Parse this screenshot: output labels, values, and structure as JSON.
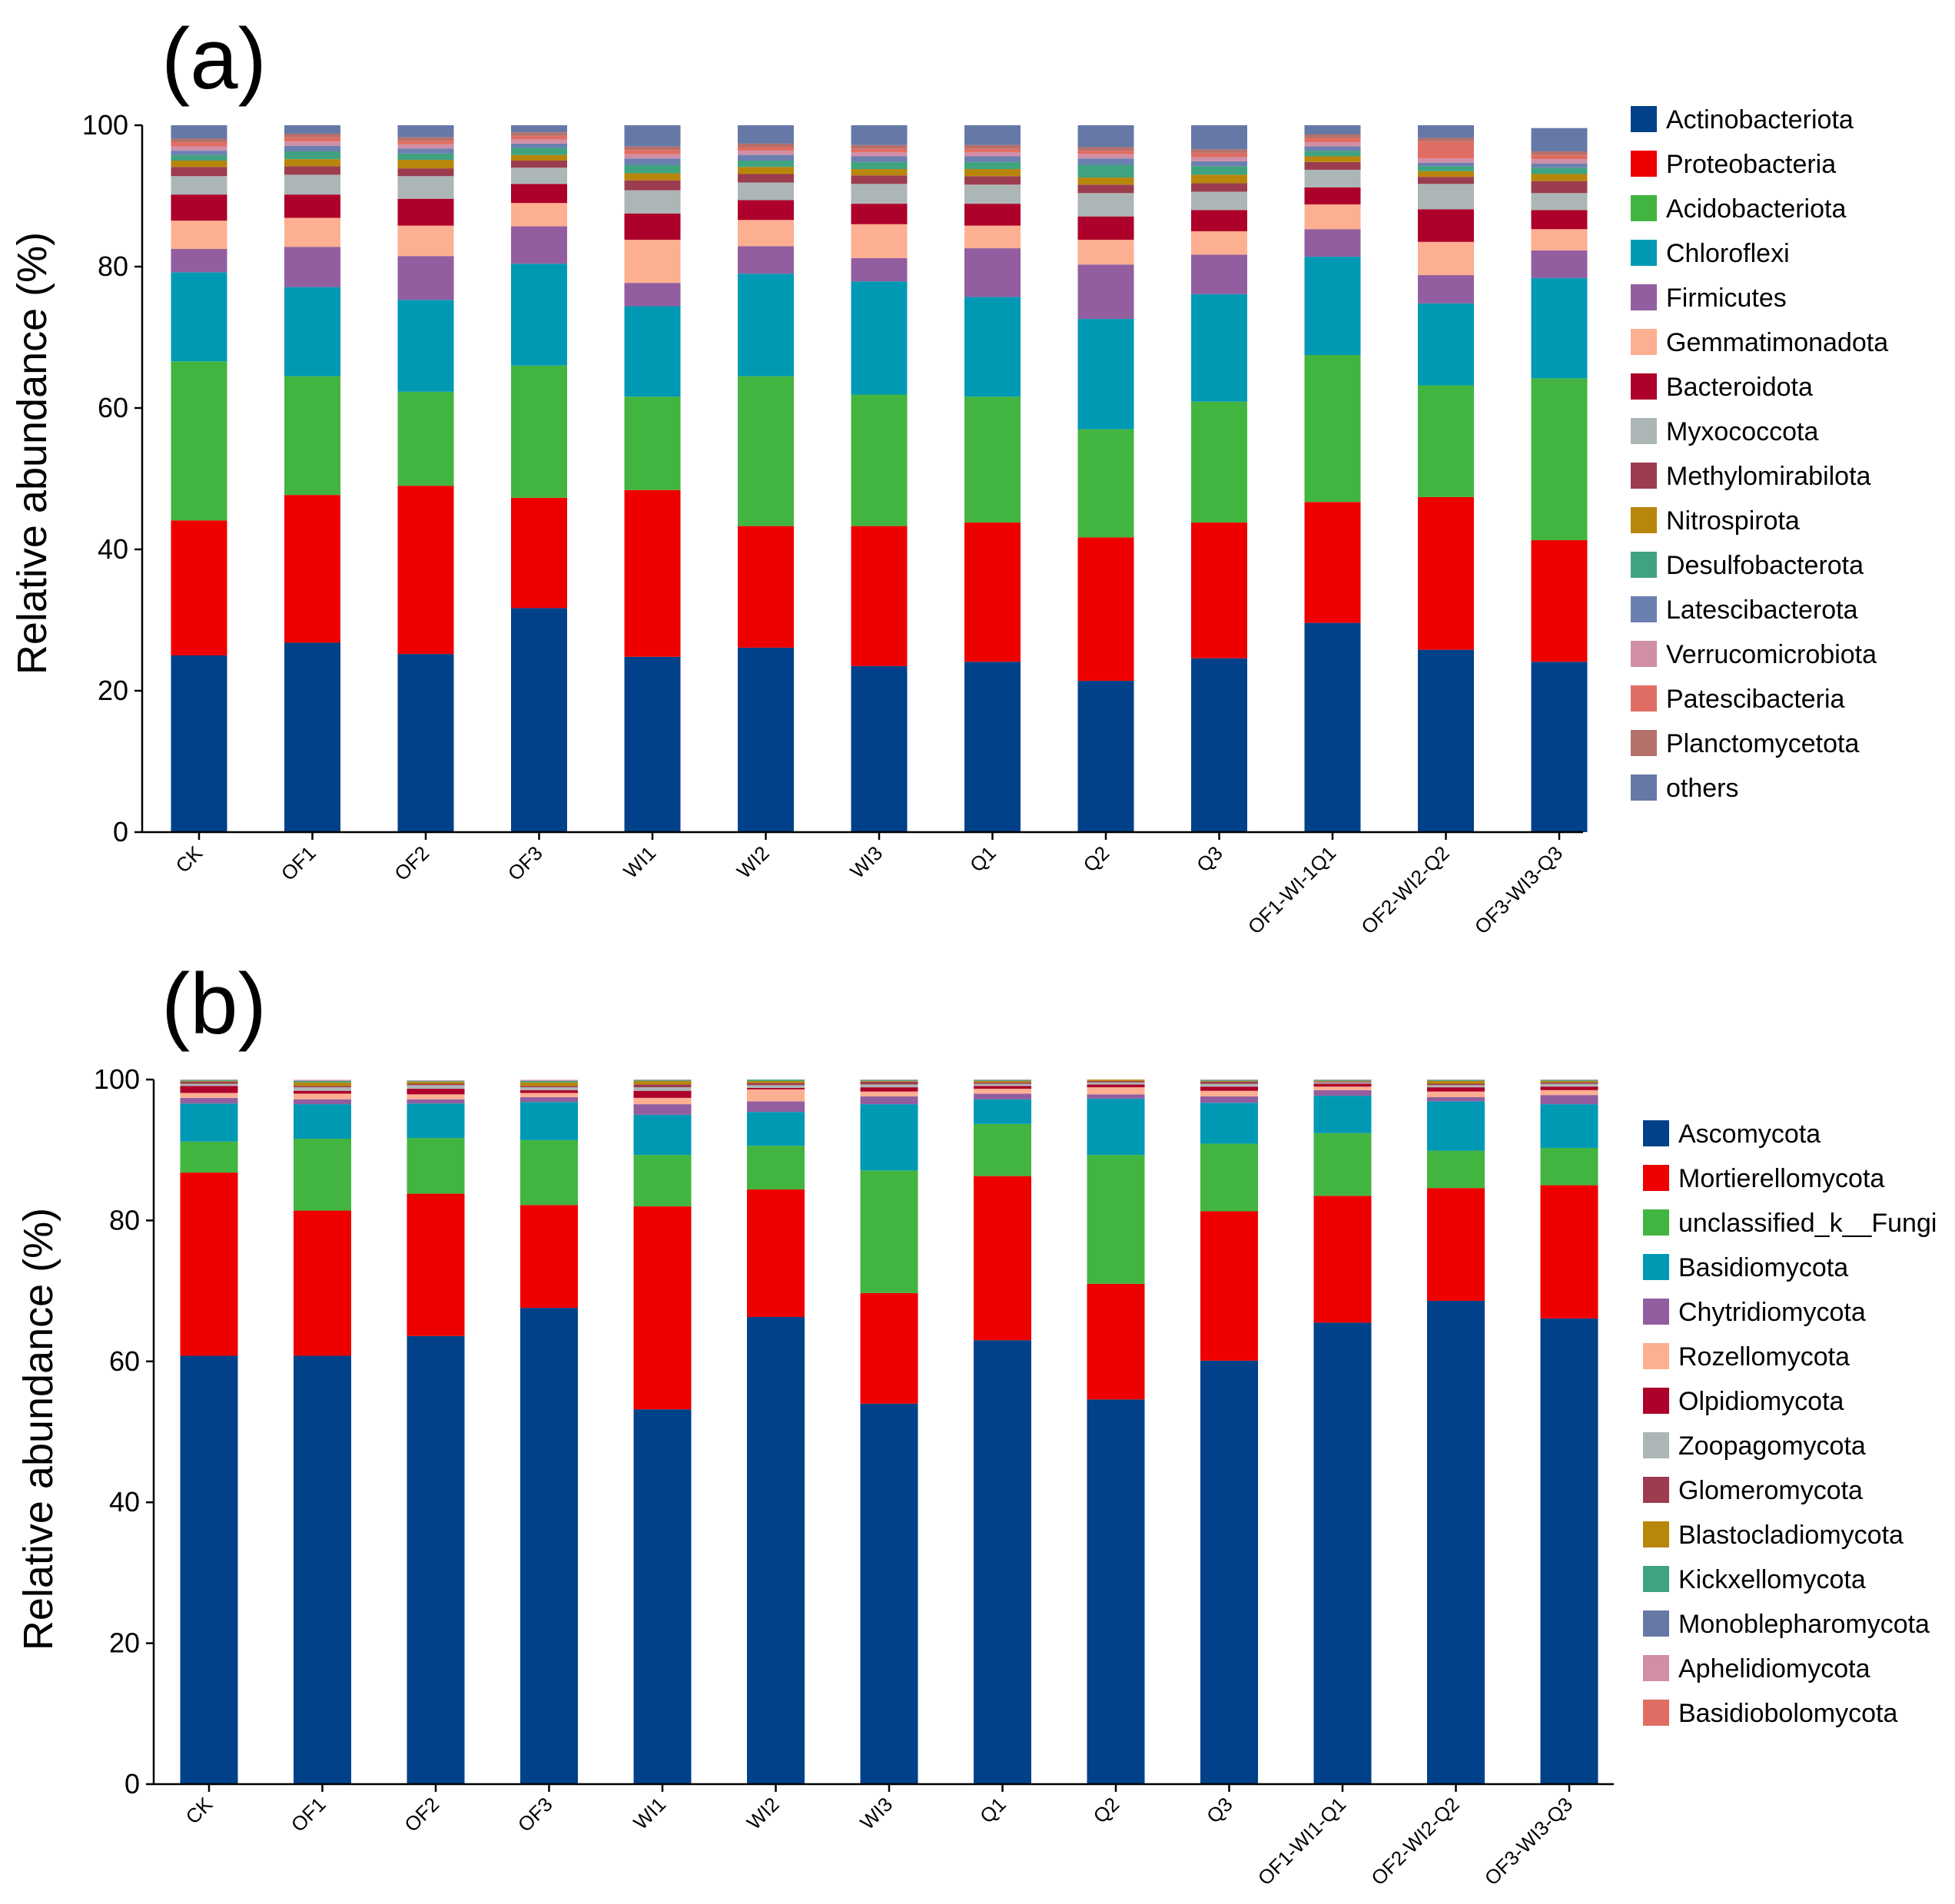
{
  "chart_data": [
    {
      "type": "bar",
      "stacked": true,
      "panel_label": "(a)",
      "title": "",
      "xlabel": "",
      "ylabel": "Relative abundance (%)",
      "ylim": [
        0,
        100
      ],
      "yticks": [
        0,
        20,
        40,
        60,
        80,
        100
      ],
      "grid": false,
      "legend_position": "right",
      "categories": [
        "CK",
        "OF1",
        "OF2",
        "OF3",
        "WI1",
        "WI2",
        "WI3",
        "Q1",
        "Q2",
        "Q3",
        "OF1-WI-1Q1",
        "OF2-WI2-Q2",
        "OF3-WI3-Q3"
      ],
      "series": [
        {
          "name": "Actinobacteriota",
          "color": "#004189",
          "values": [
            25.0,
            26.8,
            25.2,
            31.7,
            24.8,
            26.1,
            23.5,
            24.1,
            21.4,
            24.6,
            29.6,
            25.8,
            24.1
          ]
        },
        {
          "name": "Proteobacteria",
          "color": "#ee0000",
          "values": [
            19.1,
            20.9,
            23.8,
            15.6,
            23.6,
            17.2,
            19.8,
            19.7,
            20.3,
            19.2,
            17.1,
            21.6,
            17.2
          ]
        },
        {
          "name": "Acidobacteriota",
          "color": "#42b540",
          "values": [
            22.5,
            16.8,
            13.3,
            18.7,
            13.2,
            21.2,
            18.6,
            17.8,
            15.3,
            17.1,
            20.8,
            15.8,
            22.9
          ]
        },
        {
          "name": "Chloroflexi",
          "color": "#0099b4",
          "values": [
            12.6,
            12.6,
            13.0,
            14.4,
            12.8,
            14.5,
            16.0,
            14.1,
            15.6,
            15.2,
            13.9,
            11.6,
            14.2
          ]
        },
        {
          "name": "Firmicutes",
          "color": "#925e9f",
          "values": [
            3.3,
            5.7,
            6.2,
            5.3,
            3.3,
            3.9,
            3.3,
            6.9,
            7.7,
            5.6,
            3.9,
            4.0,
            3.9
          ]
        },
        {
          "name": "Gemmatimonadota",
          "color": "#fdaf91",
          "values": [
            4.0,
            4.1,
            4.3,
            3.3,
            6.1,
            3.7,
            4.8,
            3.2,
            3.5,
            3.3,
            3.5,
            4.7,
            3.0
          ]
        },
        {
          "name": "Bacteroidota",
          "color": "#ad002a",
          "values": [
            3.7,
            3.3,
            3.8,
            2.7,
            3.7,
            2.8,
            2.9,
            3.1,
            3.3,
            3.0,
            2.4,
            4.6,
            2.7
          ]
        },
        {
          "name": "Myxococcota",
          "color": "#adb6b6",
          "values": [
            2.6,
            2.8,
            3.2,
            2.3,
            3.3,
            2.5,
            2.8,
            2.7,
            3.3,
            2.6,
            2.5,
            3.6,
            2.4
          ]
        },
        {
          "name": "Methylomirabilota",
          "color": "#9b3d4f",
          "values": [
            1.3,
            1.2,
            1.1,
            1.0,
            1.4,
            1.2,
            1.2,
            1.2,
            1.2,
            1.2,
            1.1,
            1.0,
            1.7
          ]
        },
        {
          "name": "Nitrospirota",
          "color": "#b8860b",
          "values": [
            0.9,
            1.0,
            1.2,
            0.8,
            1.0,
            1.0,
            0.9,
            1.0,
            1.0,
            1.2,
            0.8,
            0.8,
            1.0
          ]
        },
        {
          "name": "Desulfobacterota",
          "color": "#3fa37f",
          "values": [
            0.8,
            1.1,
            0.9,
            1.0,
            1.2,
            0.9,
            1.0,
            1.0,
            1.8,
            1.2,
            0.8,
            0.7,
            0.9
          ]
        },
        {
          "name": "Latescibacterota",
          "color": "#6b7fb0",
          "values": [
            0.6,
            0.8,
            0.7,
            0.6,
            0.9,
            0.8,
            0.8,
            0.8,
            0.9,
            0.7,
            0.6,
            0.5,
            0.6
          ]
        },
        {
          "name": "Verrucomicrobiota",
          "color": "#d08ea7",
          "values": [
            0.6,
            0.6,
            0.6,
            0.6,
            0.6,
            0.6,
            0.6,
            0.6,
            0.6,
            0.6,
            0.6,
            0.6,
            0.6
          ]
        },
        {
          "name": "Patescibacteria",
          "color": "#e06d63",
          "values": [
            0.6,
            0.6,
            0.5,
            0.5,
            0.6,
            0.5,
            0.5,
            0.5,
            0.5,
            0.6,
            0.6,
            2.4,
            0.6
          ]
        },
        {
          "name": "Planctomycetota",
          "color": "#b6706a",
          "values": [
            0.5,
            0.5,
            0.5,
            0.5,
            0.5,
            0.5,
            0.5,
            0.5,
            0.5,
            0.5,
            0.5,
            0.5,
            0.5
          ]
        },
        {
          "name": "others",
          "color": "#6679a6",
          "values": [
            1.9,
            1.2,
            1.7,
            1.0,
            3.0,
            2.6,
            2.8,
            2.8,
            3.1,
            3.4,
            1.3,
            1.8,
            3.3
          ]
        }
      ]
    },
    {
      "type": "bar",
      "stacked": true,
      "panel_label": "(b)",
      "title": "",
      "xlabel": "",
      "ylabel": "Relative abundance (%)",
      "ylim": [
        0,
        100
      ],
      "yticks": [
        0,
        20,
        40,
        60,
        80,
        100
      ],
      "grid": false,
      "legend_position": "right",
      "categories": [
        "CK",
        "OF1",
        "OF2",
        "OF3",
        "WI1",
        "WI2",
        "WI3",
        "Q1",
        "Q2",
        "Q3",
        "OF1-WI1-Q1",
        "OF2-WI2-Q2",
        "OF3-WI3-Q3"
      ],
      "series": [
        {
          "name": "Ascomycota",
          "color": "#004189",
          "values": [
            60.8,
            60.8,
            63.6,
            67.6,
            53.2,
            66.3,
            54.0,
            63.0,
            54.6,
            60.1,
            65.5,
            68.6,
            66.1
          ]
        },
        {
          "name": "Mortierellomycota",
          "color": "#ee0000",
          "values": [
            26.0,
            20.6,
            20.2,
            14.6,
            28.8,
            18.1,
            15.7,
            23.3,
            16.4,
            21.2,
            18.0,
            16.0,
            18.9
          ]
        },
        {
          "name": "unclassified_k__Fungi",
          "color": "#42b540",
          "values": [
            4.4,
            10.2,
            7.9,
            9.2,
            7.3,
            6.2,
            17.4,
            7.4,
            18.3,
            9.6,
            8.9,
            5.3,
            5.3
          ]
        },
        {
          "name": "Basidiomycota",
          "color": "#0099b4",
          "values": [
            5.4,
            4.9,
            4.9,
            5.4,
            5.7,
            4.8,
            9.4,
            3.5,
            8.0,
            5.8,
            5.3,
            7.0,
            6.2
          ]
        },
        {
          "name": "Chytridiomycota",
          "color": "#925e9f",
          "values": [
            0.8,
            0.7,
            0.6,
            0.7,
            1.5,
            1.5,
            1.1,
            0.8,
            0.6,
            0.9,
            0.8,
            0.6,
            1.3
          ]
        },
        {
          "name": "Rozellomycota",
          "color": "#fdaf91",
          "values": [
            0.7,
            0.8,
            0.7,
            0.6,
            0.9,
            1.7,
            0.7,
            0.7,
            1.0,
            0.8,
            0.5,
            0.8,
            0.7
          ]
        },
        {
          "name": "Olpidiomycota",
          "color": "#ad002a",
          "values": [
            1.0,
            0.4,
            0.8,
            0.4,
            1.0,
            0.2,
            0.6,
            0.4,
            0.4,
            0.6,
            0.4,
            0.6,
            0.5
          ]
        },
        {
          "name": "Zoopagomycota",
          "color": "#adb6b6",
          "values": [
            0.3,
            0.5,
            0.5,
            0.4,
            0.5,
            0.4,
            0.4,
            0.3,
            0.3,
            0.4,
            0.2,
            0.3,
            0.4
          ]
        },
        {
          "name": "Glomeromycota",
          "color": "#9b3d4f",
          "values": [
            0.3,
            0.2,
            0.2,
            0.2,
            0.4,
            0.3,
            0.4,
            0.2,
            0.2,
            0.3,
            0.1,
            0.2,
            0.2
          ]
        },
        {
          "name": "Blastocladiomycota",
          "color": "#b8860b",
          "values": [
            0.1,
            0.5,
            0.3,
            0.5,
            0.5,
            0.3,
            0.1,
            0.2,
            0.2,
            0.1,
            0.1,
            0.4,
            0.2
          ]
        },
        {
          "name": "Kickxellomycota",
          "color": "#3fa37f",
          "values": [
            0.1,
            0.2,
            0.1,
            0.2,
            0.1,
            0.2,
            0.1,
            0.1,
            0.1,
            0.1,
            0.1,
            0.1,
            0.1
          ]
        },
        {
          "name": "Monoblepharomycota",
          "color": "#6679a6",
          "values": [
            0.05,
            0.05,
            0.05,
            0.05,
            0.05,
            0.05,
            0.05,
            0.05,
            0.05,
            0.05,
            0.05,
            0.05,
            0.05
          ]
        },
        {
          "name": "Aphelidiomycota",
          "color": "#d08ea7",
          "values": [
            0.05,
            0.05,
            0.05,
            0.05,
            0.05,
            0.05,
            0.05,
            0.05,
            0.05,
            0.05,
            0.05,
            0.05,
            0.05
          ]
        },
        {
          "name": "Basidiobolomycota",
          "color": "#e06d63",
          "values": [
            0.0,
            0.05,
            0.0,
            0.05,
            0.0,
            0.0,
            0.0,
            0.0,
            0.0,
            0.0,
            0.0,
            0.0,
            0.0
          ]
        }
      ]
    }
  ]
}
